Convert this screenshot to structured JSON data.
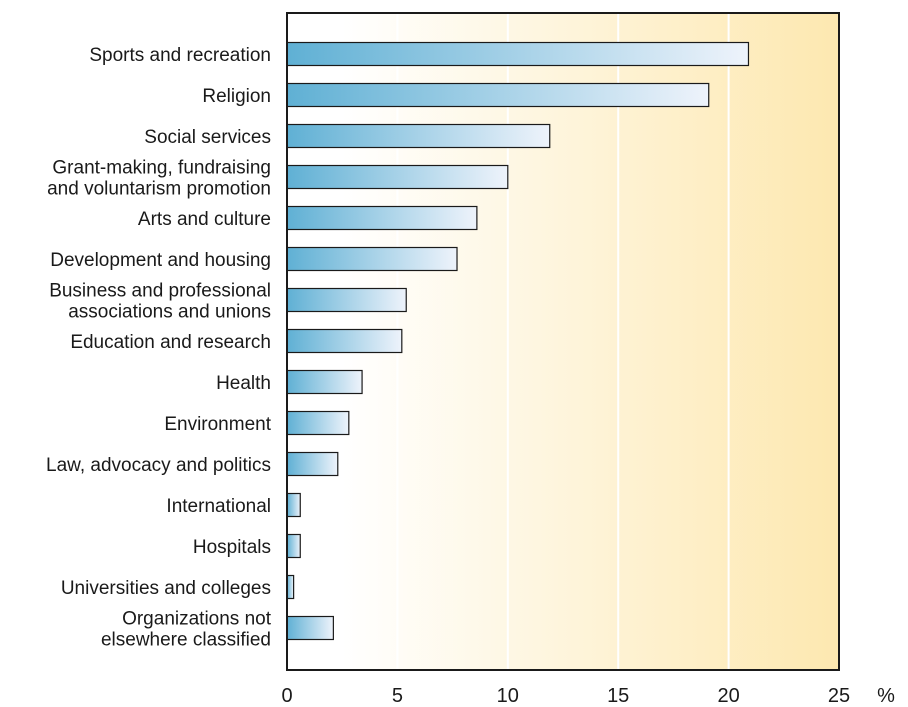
{
  "chart_data": {
    "type": "bar",
    "orientation": "horizontal",
    "categories": [
      [
        "Sports and recreation"
      ],
      [
        "Religion"
      ],
      [
        "Social services"
      ],
      [
        "Grant-making, fundraising",
        "and voluntarism promotion"
      ],
      [
        "Arts and culture"
      ],
      [
        "Development and housing"
      ],
      [
        "Business and professional",
        "associations and unions"
      ],
      [
        "Education and research"
      ],
      [
        "Health"
      ],
      [
        "Environment"
      ],
      [
        "Law, advocacy and politics"
      ],
      [
        "International"
      ],
      [
        "Hospitals"
      ],
      [
        "Universities and colleges"
      ],
      [
        "Organizations not",
        "elsewhere classified"
      ]
    ],
    "values": [
      20.9,
      19.1,
      11.9,
      10.0,
      8.6,
      7.7,
      5.4,
      5.2,
      3.4,
      2.8,
      2.3,
      0.6,
      0.6,
      0.3,
      2.1
    ],
    "xlim": [
      0,
      25
    ],
    "xticks": [
      "0",
      "5",
      "10",
      "15",
      "20",
      "25"
    ],
    "unit": "%",
    "grid": "vertical",
    "colors": {
      "bar_start": "#5fb0d4",
      "bar_end": "#eef3fb",
      "bar_stroke": "#1a1a1a",
      "bg_start": "#ffffff",
      "bg_end": "#fde8b0",
      "frame": "#1a1a1a"
    }
  }
}
